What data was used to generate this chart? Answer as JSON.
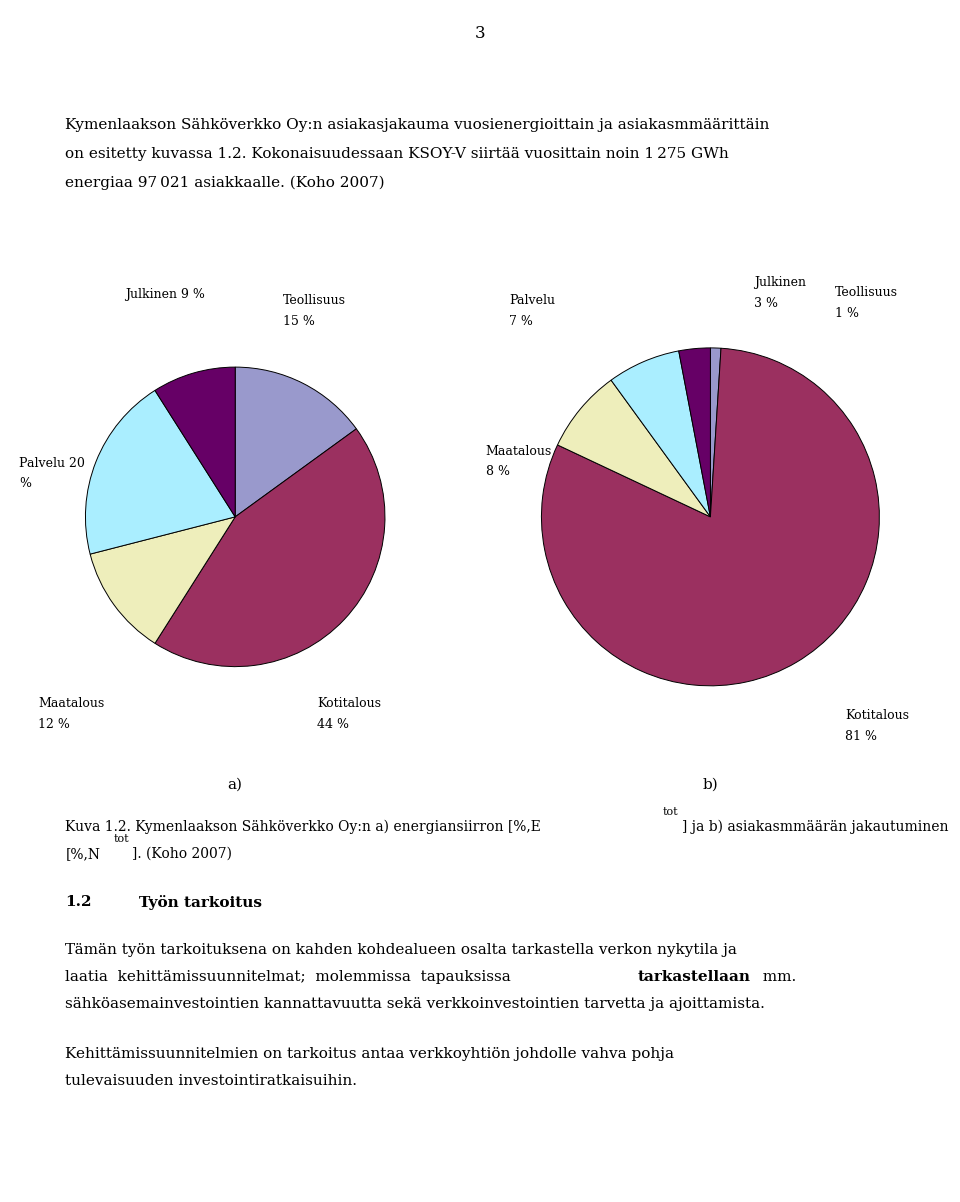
{
  "page_number": "3",
  "intro_line1": "Kymenlaakson Sähköverkko Oy:n asiakasjakauma vuosienergioittain ja asiakasmmäärittäin",
  "intro_line2": "on esitetty kuvassa 1.2. Kokonaisuudessaan KSOY-V siirtää vuosittain noin 1 275 GWh",
  "intro_line3": "energiaa 97 021 asiakkaalle. (Koho 2007)",
  "pie_a_vals": [
    15,
    44,
    12,
    20,
    9
  ],
  "pie_a_colors": [
    "#9999CC",
    "#9B3060",
    "#EEEEBB",
    "#AAEEFF",
    "#660066"
  ],
  "pie_b_vals": [
    1,
    81,
    8,
    7,
    3
  ],
  "pie_b_colors": [
    "#9999CC",
    "#9B3060",
    "#EEEEBB",
    "#AAEEFF",
    "#660066"
  ],
  "label_a": "a)",
  "label_b": "b)",
  "cap1a": "Kuva 1.2. Kymenlaakson Sähköverkko Oy:n a) energiansiirron [%,E",
  "cap1sub": "tot",
  "cap1b": "] ja b) asiakasmmäärän jakautuminen",
  "cap2a": "[%,N",
  "cap2sub": "tot",
  "cap2b": "]. (Koho 2007)",
  "sec_num": "1.2",
  "sec_title": "Työn tarkoitus",
  "p1l1": "Tämän työn tarkoituksena on kahden kohdealueen osalta tarkastella verkon nykytila ja",
  "p1l2a": "laatia  kehittämissuunnitelmat;  molemmissa  tapauksissa  ",
  "p1l2b": "tarkastellaan",
  "p1l2c": "  mm.",
  "p1l3": "sähköasemainvestointien kannattavuutta sekä verkkoinvestointien tarvetta ja ajoittamista.",
  "p2l1": "Kehittämissuunnitelmien on tarkoitus antaa verkkoyhtiön johdolle vahva pohja",
  "p2l2": "tulevaisuuden investointiratkaisuihin.",
  "bg": "#FFFFFF",
  "fg": "#000000",
  "fs_body": 11,
  "fs_caption": 10,
  "fs_pie_label": 9,
  "ML": 0.068
}
